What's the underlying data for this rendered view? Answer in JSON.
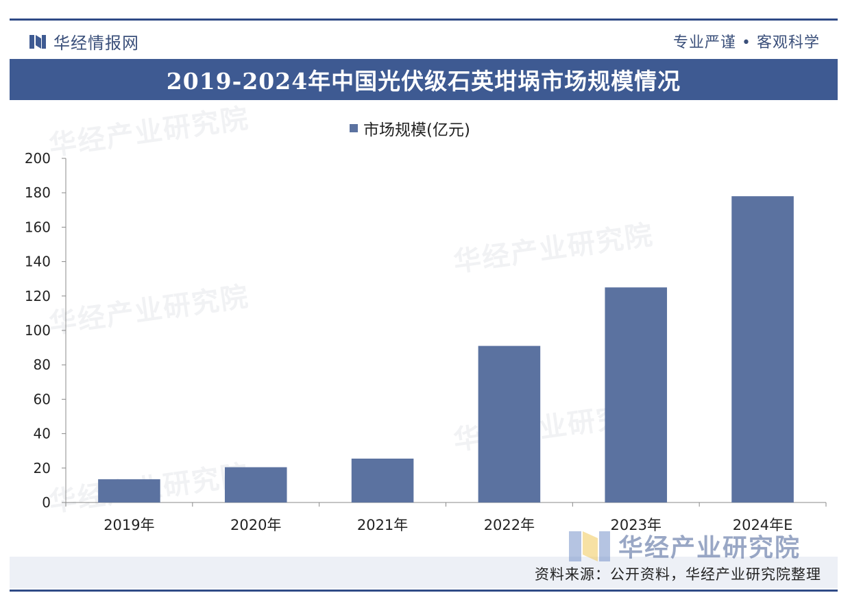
{
  "header": {
    "brand": "华经情报网",
    "slogan": "专业严谨 • 客观科学"
  },
  "watermark_text": "华经产业研究院",
  "footer": {
    "source": "资料来源：公开资料，华经产业研究院整理",
    "brand_watermark": "华经产业研究院"
  },
  "colors": {
    "bar": "#5b72a0",
    "title_bg": "#3e5a92",
    "frame": "#2f4a86"
  },
  "chart_data": {
    "type": "bar",
    "title": "2019-2024年中国光伏级石英坩埚市场规模情况",
    "categories": [
      "2019年",
      "2020年",
      "2021年",
      "2022年",
      "2023年",
      "2024年E"
    ],
    "series": [
      {
        "name": "市场规模(亿元)",
        "values": [
          13.5,
          20.5,
          25.5,
          91,
          125,
          178
        ]
      }
    ],
    "ylim": [
      0,
      200
    ],
    "yticks": [
      0,
      20,
      40,
      60,
      80,
      100,
      120,
      140,
      160,
      180,
      200
    ],
    "legend": "top-center",
    "grid": false
  }
}
